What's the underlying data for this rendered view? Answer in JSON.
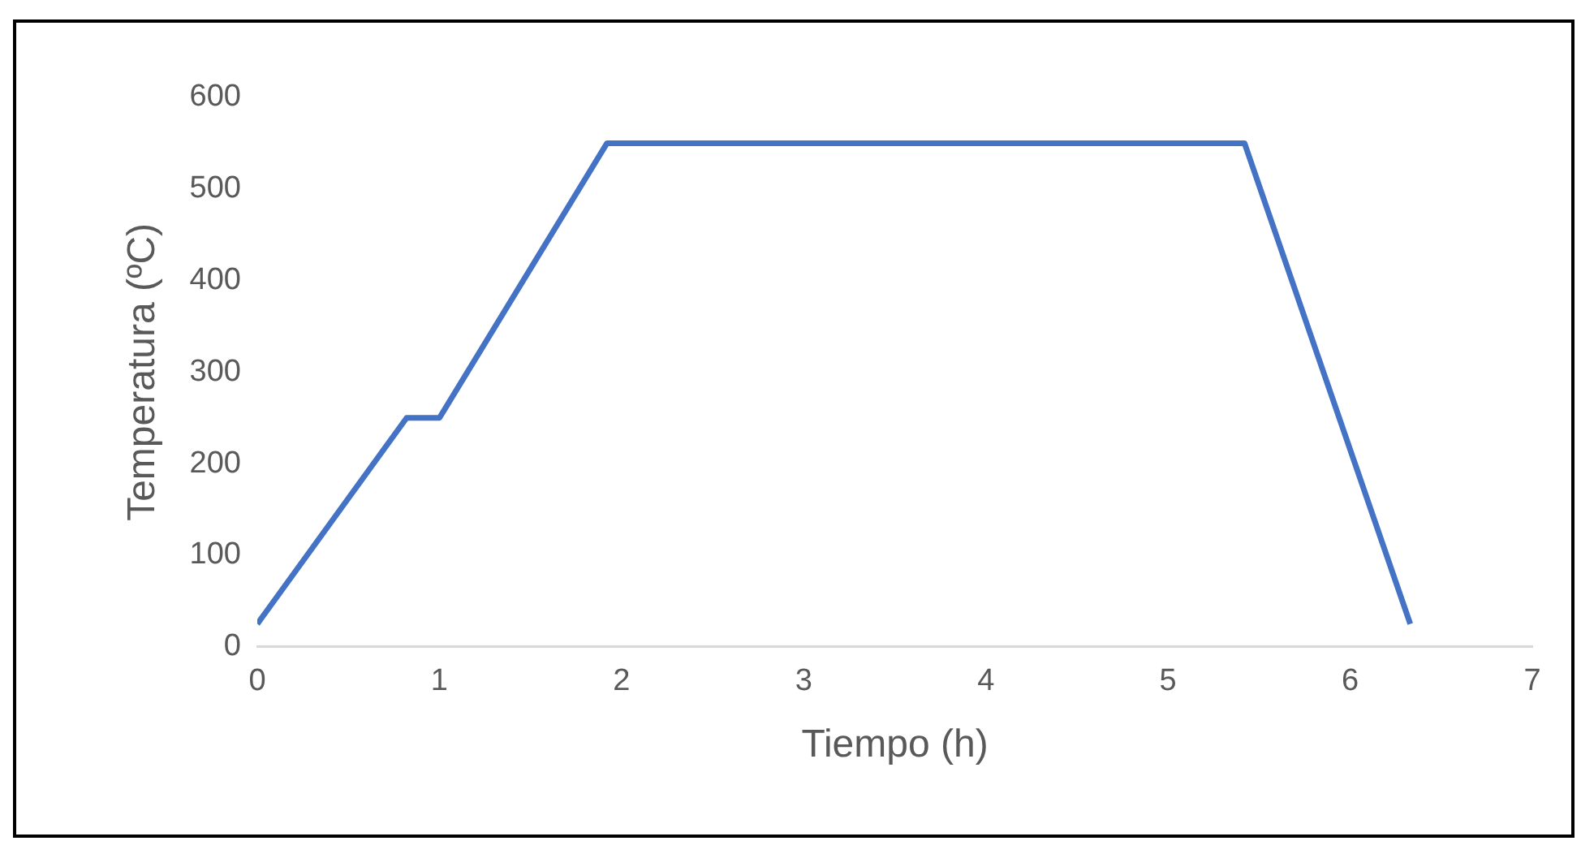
{
  "chart_data": {
    "type": "line",
    "xlabel": "Tiempo (h)",
    "ylabel": "Temperatura (ºC)",
    "x": [
      0,
      0.82,
      1,
      1.92,
      5.42,
      6.33
    ],
    "series": [
      {
        "color": "#4472c4",
        "values": [
          25,
          250,
          250,
          550,
          550,
          25
        ]
      }
    ],
    "xlim": [
      0,
      7
    ],
    "xticks": [
      0,
      1,
      2,
      3,
      4,
      5,
      6,
      7
    ],
    "ylim": [
      0,
      600
    ],
    "yticks": [
      0,
      100,
      200,
      300,
      400,
      500,
      600
    ],
    "grid": false,
    "legend": false,
    "marker": "none",
    "line_style": "solid"
  }
}
